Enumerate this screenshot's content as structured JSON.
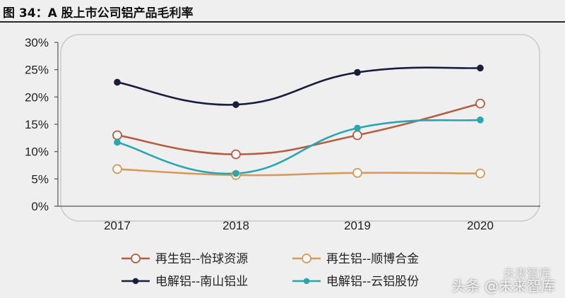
{
  "header": {
    "title": "图 34：A 股上市公司铝产品毛利率"
  },
  "watermark": {
    "text": "头条 @未来智库",
    "top_text": "未来智库"
  },
  "chart_data": {
    "type": "line",
    "title": "",
    "xlabel": "",
    "ylabel": "",
    "categories": [
      "2017",
      "2018",
      "2019",
      "2020"
    ],
    "ylim": [
      0,
      30
    ],
    "yticks": [
      "0%",
      "5%",
      "10%",
      "15%",
      "20%",
      "25%",
      "30%"
    ],
    "legend_position": "bottom",
    "series": [
      {
        "name": "再生铝--怡球资源",
        "values": [
          13.0,
          9.5,
          13.0,
          18.8
        ],
        "color": "#b45f42",
        "marker": "hollow"
      },
      {
        "name": "再生铝--顺博合金",
        "values": [
          6.8,
          5.7,
          6.1,
          6.0
        ],
        "color": "#d69a5e",
        "marker": "hollow"
      },
      {
        "name": "电解铝--南山铝业",
        "values": [
          22.7,
          18.6,
          24.5,
          25.3
        ],
        "color": "#1a1e3c",
        "marker": "filled"
      },
      {
        "name": "电解铝--云铝股份",
        "values": [
          11.7,
          6.0,
          14.3,
          15.8
        ],
        "color": "#2aa6b0",
        "marker": "filled"
      }
    ]
  }
}
